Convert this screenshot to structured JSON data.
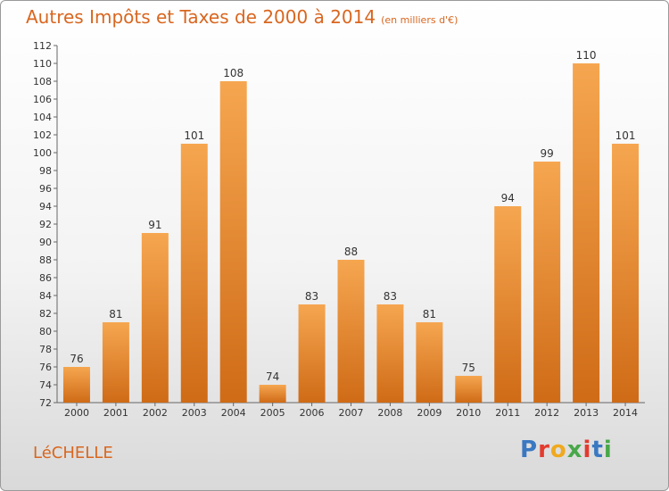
{
  "header": {
    "title": "Autres Impôts et Taxes de 2000 à 2014",
    "subtitle": "(en milliers d'€)"
  },
  "footer": {
    "location": "LéCHELLE",
    "logo": "Proxiti"
  },
  "colors": {
    "title": "#d9661f",
    "bar_light": "#f6a650",
    "bar_dark": "#cf6b17",
    "logo_letters": [
      "#3a78c2",
      "#e33b2e",
      "#f0a91f",
      "#49a84a",
      "#e33b2e",
      "#3a78c2",
      "#49a84a"
    ]
  },
  "chart_data": {
    "type": "bar",
    "categories": [
      "2000",
      "2001",
      "2002",
      "2003",
      "2004",
      "2005",
      "2006",
      "2007",
      "2008",
      "2009",
      "2010",
      "2011",
      "2012",
      "2013",
      "2014"
    ],
    "values": [
      76,
      81,
      91,
      101,
      108,
      74,
      83,
      88,
      83,
      81,
      75,
      94,
      99,
      110,
      101
    ],
    "ylim": [
      72,
      112
    ],
    "yticks": [
      72,
      74,
      76,
      78,
      80,
      82,
      84,
      86,
      88,
      90,
      92,
      94,
      96,
      98,
      100,
      102,
      104,
      106,
      108,
      110,
      112
    ],
    "grid": false,
    "data_labels": true
  }
}
